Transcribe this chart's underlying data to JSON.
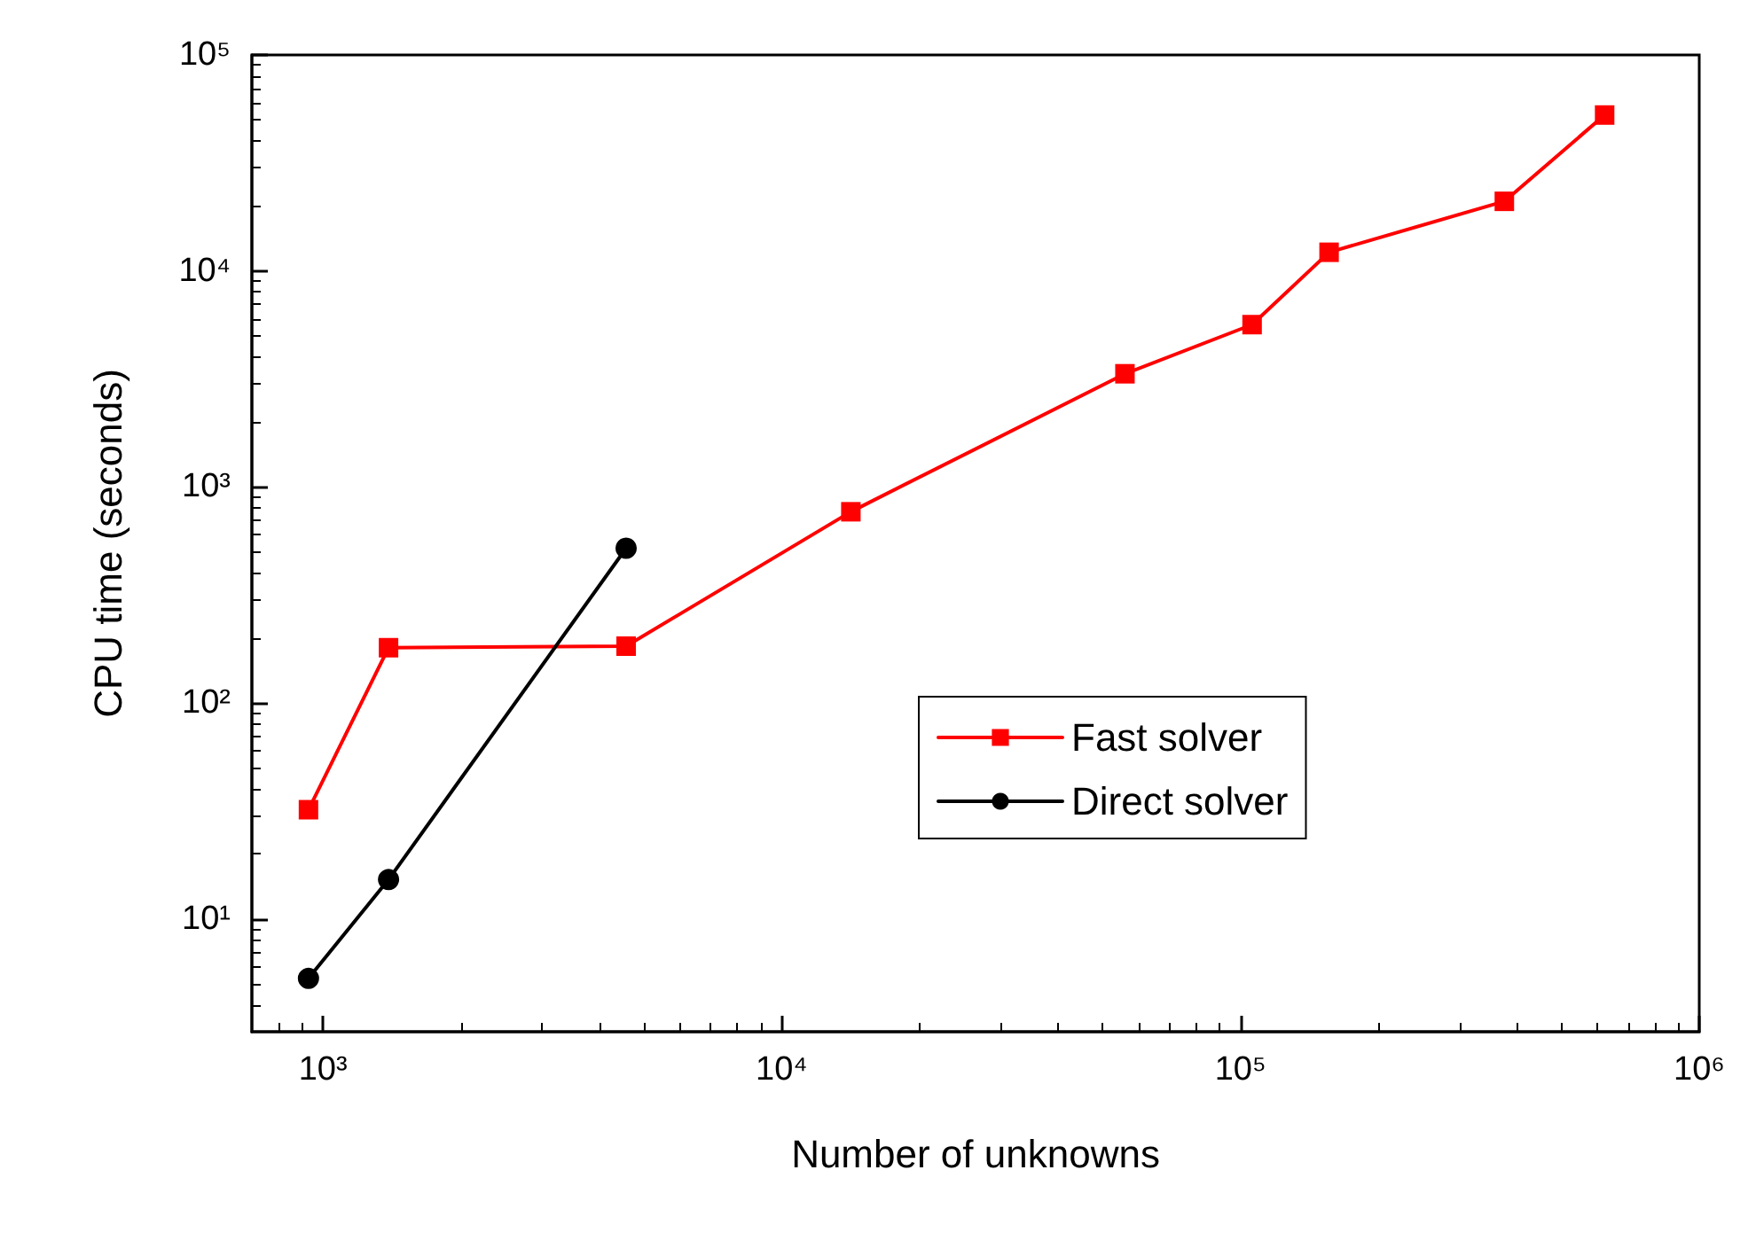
{
  "chart_data": {
    "type": "line",
    "xlabel": "Number of unknowns",
    "ylabel": "CPU time (seconds)",
    "log": "xy",
    "grid": false,
    "legend": "center",
    "xlim": [
      700,
      1000000
    ],
    "xticks": [
      {
        "value": 1000,
        "label": "10³"
      },
      {
        "value": 10000,
        "label": "10⁴"
      },
      {
        "value": 100000,
        "label": "10⁵"
      },
      {
        "value": 1000000,
        "label": "10⁶"
      }
    ],
    "ylim": [
      3,
      100000
    ],
    "yticks": [
      {
        "value": 10,
        "label": "10¹"
      },
      {
        "value": 100,
        "label": "10²"
      },
      {
        "value": 1000,
        "label": "10³"
      },
      {
        "value": 10000,
        "label": "10⁴"
      },
      {
        "value": 100000,
        "label": "10⁵"
      }
    ],
    "series": [
      {
        "name": "Fast solver",
        "color": "#ff0000",
        "marker": "square",
        "x": [
          930,
          1390,
          4580,
          14150,
          56000,
          106000,
          156000,
          376000,
          622000
        ],
        "values": [
          32,
          180,
          183,
          767,
          3340,
          5640,
          12200,
          21000,
          52700
        ]
      },
      {
        "name": "Direct solver",
        "color": "#000000",
        "marker": "circle",
        "x": [
          930,
          1390,
          4580
        ],
        "values": [
          5.3,
          15.2,
          520
        ]
      }
    ]
  }
}
